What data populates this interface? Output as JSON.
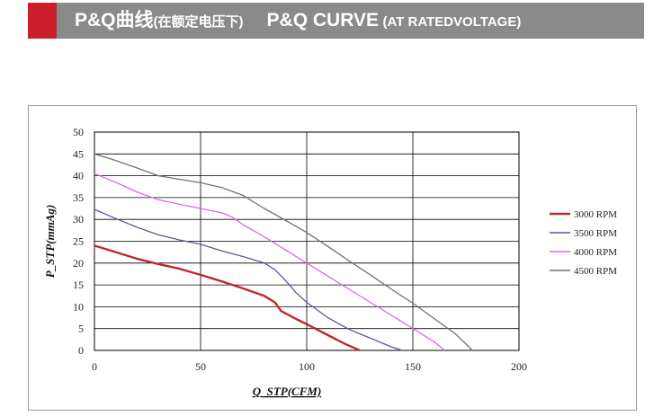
{
  "header": {
    "title_cn": "P&Q曲线",
    "subtitle_cn": "(在额定电压下)",
    "title_en": "P&Q CURVE",
    "subtitle_en": "(AT RATEDVOLTAGE)",
    "colors": {
      "accent": "#cc1f2b",
      "bar": "#8a8a8a"
    }
  },
  "chart_data": {
    "type": "line",
    "xlabel": "Q_STP(CFM)",
    "ylabel": "P_STP(mmAg)",
    "xlim": [
      0,
      200
    ],
    "ylim": [
      0,
      50
    ],
    "xticks": [
      0,
      50,
      100,
      150,
      200
    ],
    "yticks": [
      0,
      5,
      10,
      15,
      20,
      25,
      30,
      35,
      40,
      45,
      50
    ],
    "grid": true,
    "legend_position": "right",
    "series": [
      {
        "name": "3000 RPM",
        "color": "#c0282d",
        "points": [
          [
            0,
            24
          ],
          [
            10,
            22.5
          ],
          [
            20,
            21
          ],
          [
            30,
            19.8
          ],
          [
            40,
            18.7
          ],
          [
            50,
            17.3
          ],
          [
            60,
            15.8
          ],
          [
            70,
            14.2
          ],
          [
            80,
            12.5
          ],
          [
            85,
            11
          ],
          [
            88,
            9
          ],
          [
            95,
            7.2
          ],
          [
            100,
            6
          ],
          [
            110,
            3.5
          ],
          [
            118,
            1.5
          ],
          [
            125,
            0
          ]
        ]
      },
      {
        "name": "3500 RPM",
        "color": "#5a5aa0",
        "points": [
          [
            0,
            32.3
          ],
          [
            10,
            30.2
          ],
          [
            20,
            28.2
          ],
          [
            30,
            26.5
          ],
          [
            40,
            25.3
          ],
          [
            50,
            24.3
          ],
          [
            60,
            22.8
          ],
          [
            70,
            21.5
          ],
          [
            80,
            20
          ],
          [
            85,
            18.5
          ],
          [
            90,
            16
          ],
          [
            95,
            13.2
          ],
          [
            100,
            11
          ],
          [
            110,
            7.5
          ],
          [
            120,
            4.8
          ],
          [
            130,
            2.8
          ],
          [
            140,
            0.8
          ],
          [
            145,
            0
          ]
        ]
      },
      {
        "name": "4000 RPM",
        "color": "#d36ee0",
        "points": [
          [
            0,
            40.5
          ],
          [
            10,
            38.5
          ],
          [
            20,
            36.3
          ],
          [
            30,
            34.5
          ],
          [
            40,
            33.5
          ],
          [
            50,
            32.5
          ],
          [
            60,
            31.5
          ],
          [
            65,
            30.5
          ],
          [
            70,
            28.8
          ],
          [
            80,
            26
          ],
          [
            90,
            23
          ],
          [
            100,
            20
          ],
          [
            110,
            17
          ],
          [
            120,
            14
          ],
          [
            130,
            11
          ],
          [
            140,
            8
          ],
          [
            150,
            5
          ],
          [
            160,
            2
          ],
          [
            165,
            0
          ]
        ]
      },
      {
        "name": "4500 RPM",
        "color": "#707070",
        "points": [
          [
            0,
            45
          ],
          [
            10,
            43.5
          ],
          [
            20,
            41.8
          ],
          [
            30,
            40
          ],
          [
            40,
            39.2
          ],
          [
            50,
            38.4
          ],
          [
            60,
            37.3
          ],
          [
            70,
            35.5
          ],
          [
            80,
            32.5
          ],
          [
            90,
            29.8
          ],
          [
            100,
            27
          ],
          [
            110,
            23.8
          ],
          [
            120,
            20.5
          ],
          [
            130,
            17.3
          ],
          [
            140,
            14
          ],
          [
            150,
            10.8
          ],
          [
            160,
            7.3
          ],
          [
            170,
            3.8
          ],
          [
            176,
            1
          ],
          [
            178,
            0
          ]
        ]
      }
    ]
  }
}
